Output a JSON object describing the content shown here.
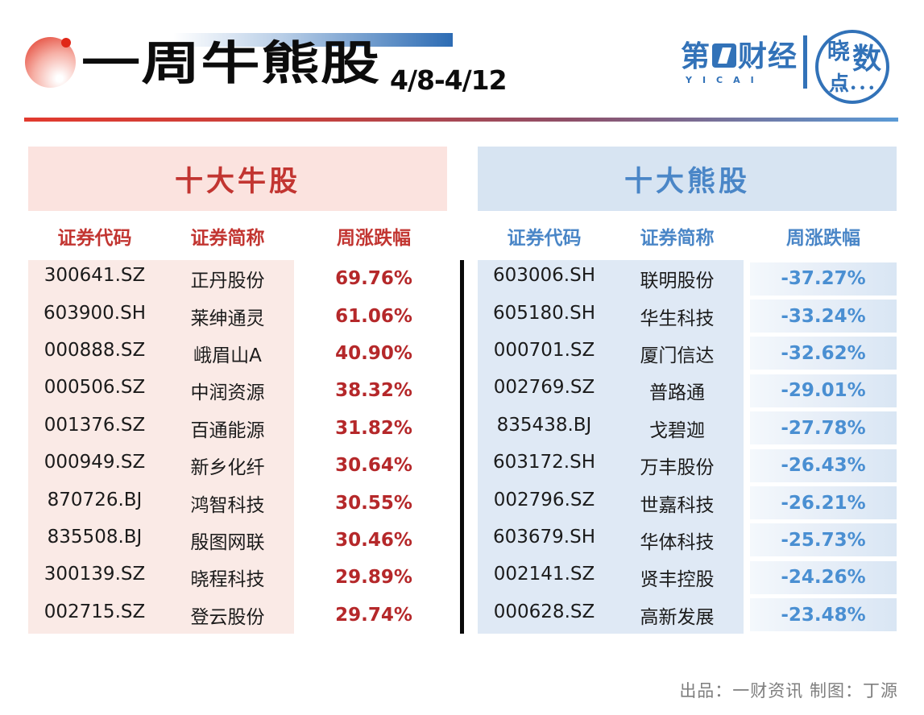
{
  "header": {
    "title": "一周牛熊股",
    "date_range": "4/8-4/12",
    "brand": {
      "prefix": "第",
      "one": "1",
      "suffix": "财经",
      "latin": "YICAI"
    },
    "column_logo": {
      "char1": "晓",
      "char2": "数",
      "char3": "点",
      "dots": "••••"
    }
  },
  "bull_table": {
    "title": "十大牛股",
    "columns": [
      "证券代码",
      "证券简称",
      "周涨跌幅"
    ],
    "rows": [
      [
        "300641.SZ",
        "正丹股份",
        "69.76%"
      ],
      [
        "603900.SH",
        "莱绅通灵",
        "61.06%"
      ],
      [
        "000888.SZ",
        "峨眉山A",
        "40.90%"
      ],
      [
        "000506.SZ",
        "中润资源",
        "38.32%"
      ],
      [
        "001376.SZ",
        "百通能源",
        "31.82%"
      ],
      [
        "000949.SZ",
        "新乡化纤",
        "30.64%"
      ],
      [
        "870726.BJ",
        "鸿智科技",
        "30.55%"
      ],
      [
        "835508.BJ",
        "殷图网联",
        "30.46%"
      ],
      [
        "300139.SZ",
        "晓程科技",
        "29.89%"
      ],
      [
        "002715.SZ",
        "登云股份",
        "29.74%"
      ]
    ]
  },
  "bear_table": {
    "title": "十大熊股",
    "columns": [
      "证券代码",
      "证券简称",
      "周涨跌幅"
    ],
    "rows": [
      [
        "603006.SH",
        "联明股份",
        "-37.27%"
      ],
      [
        "605180.SH",
        "华生科技",
        "-33.24%"
      ],
      [
        "000701.SZ",
        "厦门信达",
        "-32.62%"
      ],
      [
        "002769.SZ",
        "普路通",
        "-29.01%"
      ],
      [
        "835438.BJ",
        "戈碧迦",
        "-27.78%"
      ],
      [
        "603172.SH",
        "万丰股份",
        "-26.43%"
      ],
      [
        "002796.SZ",
        "世嘉科技",
        "-26.21%"
      ],
      [
        "603679.SH",
        "华体科技",
        "-25.73%"
      ],
      [
        "002141.SZ",
        "贤丰控股",
        "-24.26%"
      ],
      [
        "000628.SZ",
        "高新发展",
        "-23.48%"
      ]
    ]
  },
  "footer": {
    "credit": "出品：一财资讯 制图：丁源"
  },
  "colors": {
    "bull_accent": "#c23531",
    "bull_value": "#b5282a",
    "bull_banner_bg": "#fbe3df",
    "bull_body_bg": "#faeae6",
    "bear_accent": "#4a86c7",
    "bear_value": "#4a8fd2",
    "bear_banner_bg": "#d7e4f2",
    "bear_body_bg": "#dfe9f5",
    "brand_blue": "#3272b8",
    "title_bar_blue": "#2d6cb4",
    "rule_gradient_start": "#e23a2e",
    "rule_gradient_end": "#5a9ad6",
    "divider_black": "#0a0a0a",
    "credit_gray": "#7e7e7e"
  },
  "chart_data": [
    {
      "type": "table",
      "title": "十大牛股",
      "columns": [
        "证券代码",
        "证券简称",
        "周涨跌幅"
      ],
      "rows": [
        [
          "300641.SZ",
          "正丹股份",
          69.76
        ],
        [
          "603900.SH",
          "莱绅通灵",
          61.06
        ],
        [
          "000888.SZ",
          "峨眉山A",
          40.9
        ],
        [
          "000506.SZ",
          "中润资源",
          38.32
        ],
        [
          "001376.SZ",
          "百通能源",
          31.82
        ],
        [
          "000949.SZ",
          "新乡化纤",
          30.64
        ],
        [
          "870726.BJ",
          "鸿智科技",
          30.55
        ],
        [
          "835508.BJ",
          "殷图网联",
          30.46
        ],
        [
          "300139.SZ",
          "晓程科技",
          29.89
        ],
        [
          "002715.SZ",
          "登云股份",
          29.74
        ]
      ],
      "value_unit": "percent_weekly_change"
    },
    {
      "type": "table",
      "title": "十大熊股",
      "columns": [
        "证券代码",
        "证券简称",
        "周涨跌幅"
      ],
      "rows": [
        [
          "603006.SH",
          "联明股份",
          -37.27
        ],
        [
          "605180.SH",
          "华生科技",
          -33.24
        ],
        [
          "000701.SZ",
          "厦门信达",
          -32.62
        ],
        [
          "002769.SZ",
          "普路通",
          -29.01
        ],
        [
          "835438.BJ",
          "戈碧迦",
          -27.78
        ],
        [
          "603172.SH",
          "万丰股份",
          -26.43
        ],
        [
          "002796.SZ",
          "世嘉科技",
          -26.21
        ],
        [
          "603679.SH",
          "华体科技",
          -25.73
        ],
        [
          "002141.SZ",
          "贤丰控股",
          -24.26
        ],
        [
          "000628.SZ",
          "高新发展",
          -23.48
        ]
      ],
      "value_unit": "percent_weekly_change"
    }
  ]
}
